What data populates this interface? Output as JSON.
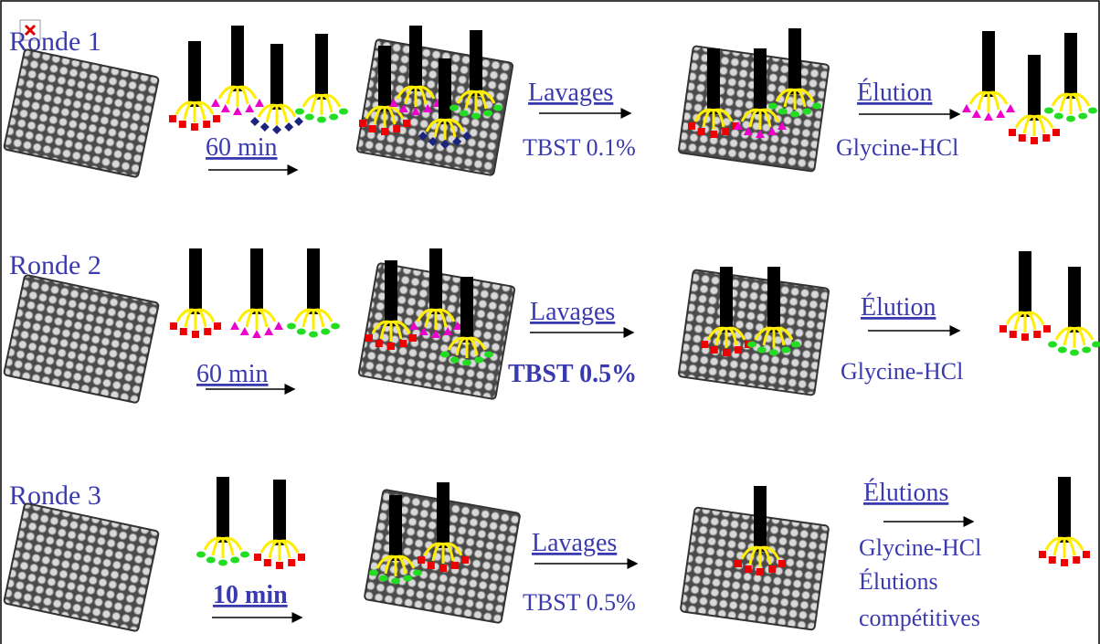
{
  "rounds": [
    {
      "label": "Ronde 1",
      "incubation": "60 min",
      "wash": "Lavages",
      "wash_buffer": "TBST 0.1%",
      "elution": "Élution",
      "elution_buffer": [
        "Glycine-HCl"
      ]
    },
    {
      "label": "Ronde 2",
      "incubation": "60 min",
      "wash": "Lavages",
      "wash_buffer": "TBST 0.5%",
      "elution": "Élution",
      "elution_buffer": [
        "Glycine-HCl"
      ]
    },
    {
      "label": "Ronde 3",
      "incubation": "10 min",
      "wash": "Lavages",
      "wash_buffer": "TBST 0.5%",
      "elution": "Élutions",
      "elution_buffer": [
        "Glycine-HCl",
        "Élutions",
        "compétitives"
      ]
    }
  ]
}
